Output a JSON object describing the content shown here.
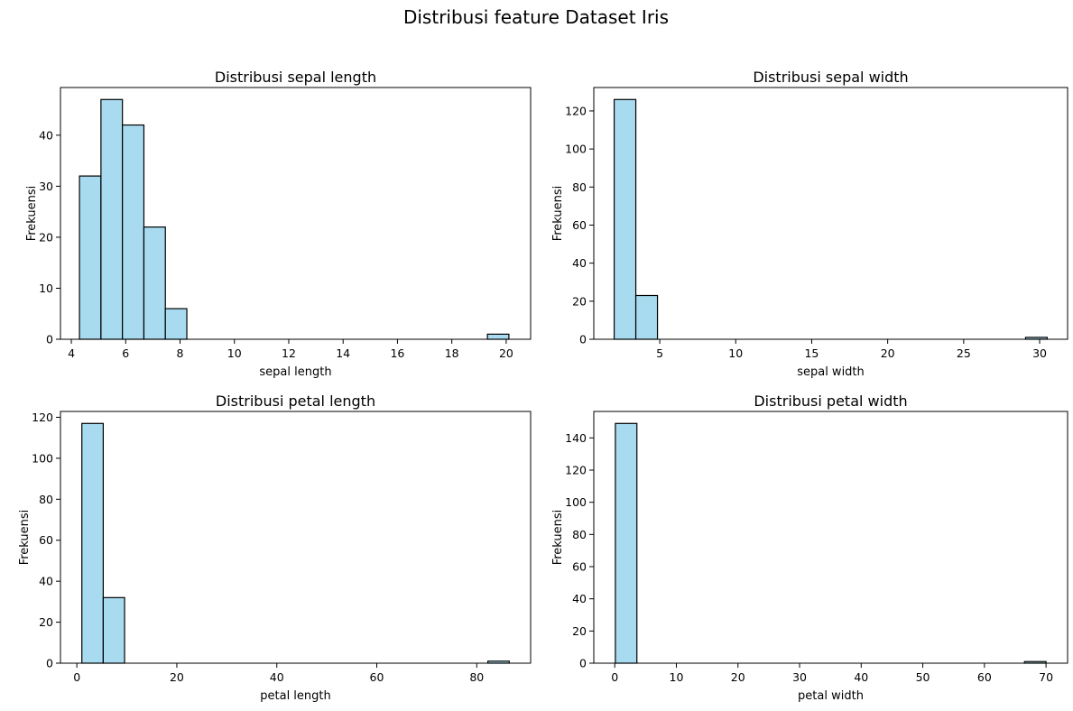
{
  "figure_title": "Distribusi feature Dataset Iris",
  "colors": {
    "bar_fill": "#a8dbef",
    "bar_edge": "#000000",
    "axis": "#000000",
    "background": "#ffffff"
  },
  "chart_data": [
    {
      "type": "bar",
      "title": "Distribusi sepal length",
      "xlabel": "sepal length",
      "ylabel": "Frekuensi",
      "xlim": [
        3.6,
        20.9
      ],
      "ylim": [
        0,
        49.35
      ],
      "xticks": [
        4,
        6,
        8,
        10,
        12,
        14,
        16,
        18,
        20
      ],
      "yticks": [
        0,
        10,
        20,
        30,
        40
      ],
      "bin_edges": [
        4.3,
        5.09,
        5.88,
        6.67,
        7.46,
        8.25,
        9.04,
        9.83,
        10.62,
        11.41,
        12.2,
        12.99,
        13.78,
        14.57,
        15.36,
        16.15,
        16.94,
        17.73,
        18.52,
        19.31,
        20.1
      ],
      "values": [
        32,
        47,
        42,
        22,
        6,
        0,
        0,
        0,
        0,
        0,
        0,
        0,
        0,
        0,
        0,
        0,
        0,
        0,
        0,
        1
      ]
    },
    {
      "type": "bar",
      "title": "Distribusi sepal width",
      "xlabel": "sepal width",
      "ylabel": "Frekuensi",
      "xlim": [
        0.66,
        31.84
      ],
      "ylim": [
        0,
        132.3
      ],
      "xticks": [
        5,
        10,
        15,
        20,
        25,
        30
      ],
      "yticks": [
        0,
        20,
        40,
        60,
        80,
        100,
        120
      ],
      "bin_edges": [
        2.0,
        3.425,
        4.85,
        6.275,
        7.7,
        9.125,
        10.55,
        11.975,
        13.4,
        14.825,
        16.25,
        17.675,
        19.1,
        20.525,
        21.95,
        23.375,
        24.8,
        26.225,
        27.65,
        29.075,
        30.5
      ],
      "values": [
        126,
        23,
        0,
        0,
        0,
        0,
        0,
        0,
        0,
        0,
        0,
        0,
        0,
        0,
        0,
        0,
        0,
        0,
        0,
        1
      ]
    },
    {
      "type": "bar",
      "title": "Distribusi petal length",
      "xlabel": "petal length",
      "ylabel": "Frekuensi",
      "xlim": [
        -3.28,
        90.78
      ],
      "ylim": [
        0,
        122.85
      ],
      "xticks": [
        0,
        20,
        40,
        60,
        80
      ],
      "yticks": [
        0,
        20,
        40,
        60,
        80,
        100,
        120
      ],
      "bin_edges": [
        1.0,
        5.275,
        9.55,
        13.825,
        18.1,
        22.375,
        26.65,
        30.925,
        35.2,
        39.475,
        43.75,
        48.025,
        52.3,
        56.575,
        60.85,
        65.125,
        69.4,
        73.675,
        77.95,
        82.225,
        86.5
      ],
      "values": [
        117,
        32,
        0,
        0,
        0,
        0,
        0,
        0,
        0,
        0,
        0,
        0,
        0,
        0,
        0,
        0,
        0,
        0,
        0,
        1
      ]
    },
    {
      "type": "bar",
      "title": "Distribusi petal width",
      "xlabel": "petal width",
      "ylabel": "Frekuensi",
      "xlim": [
        -3.4,
        73.5
      ],
      "ylim": [
        0,
        156.45
      ],
      "xticks": [
        0,
        10,
        20,
        30,
        40,
        50,
        60,
        70
      ],
      "yticks": [
        0,
        20,
        40,
        60,
        80,
        100,
        120,
        140
      ],
      "bin_edges": [
        0.1,
        3.595,
        7.09,
        10.585,
        14.08,
        17.575,
        21.07,
        24.565,
        28.06,
        31.555,
        35.05,
        38.545,
        42.04,
        45.535,
        49.03,
        52.525,
        56.02,
        59.515,
        63.01,
        66.505,
        70.0
      ],
      "values": [
        149,
        0,
        0,
        0,
        0,
        0,
        0,
        0,
        0,
        0,
        0,
        0,
        0,
        0,
        0,
        0,
        0,
        0,
        0,
        1
      ]
    }
  ]
}
